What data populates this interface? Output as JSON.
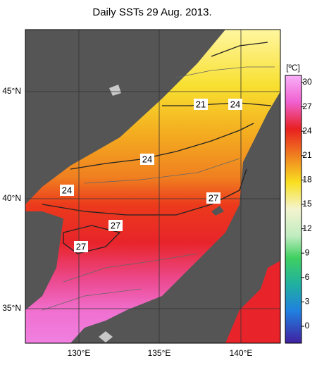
{
  "title": "Daily SSTs 29 Aug. 2013.",
  "latitude_labels": [
    "45°N",
    "40°N",
    "35°N"
  ],
  "longitude_labels": [
    "130°E",
    "135°E",
    "140°E"
  ],
  "colorbar": {
    "unit": "[ºC]",
    "ticks": [
      "30",
      "27",
      "24",
      "21",
      "18",
      "15",
      "12",
      "9",
      "6",
      "3",
      "0"
    ]
  },
  "contour_labels": [
    "21",
    "24",
    "24",
    "24",
    "27",
    "27",
    "27"
  ]
}
